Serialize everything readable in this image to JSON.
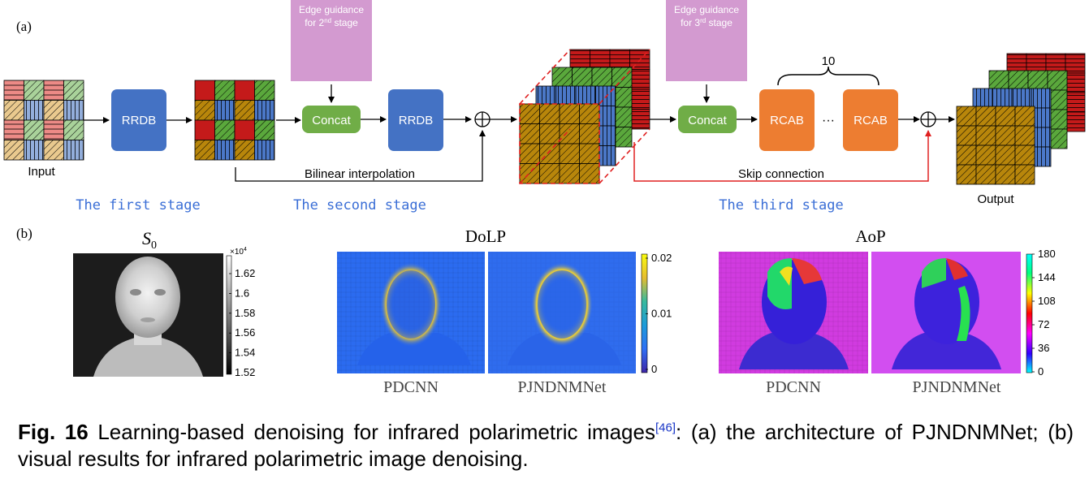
{
  "panel_a": {
    "label": "(a)",
    "input_label": "Input",
    "output_label": "Output",
    "rrdb_label": "RRDB",
    "concat_label": "Concat",
    "rcab_label": "RCAB",
    "ellipsis": "···",
    "rcab_count": "10",
    "edge_guidance_2_line1": "Edge guidance",
    "edge_guidance_2_line2": "for 2",
    "edge_guidance_2_sup": "nd",
    "edge_guidance_2_line2_end": " stage",
    "edge_guidance_3_line1": "Edge guidance",
    "edge_guidance_3_line2": "for 3",
    "edge_guidance_3_sup": "rd",
    "edge_guidance_3_line2_end": " stage",
    "bilinear_label": "Bilinear interpolation",
    "skip_label": "Skip connection",
    "stage1": "The first stage",
    "stage2": "The second stage",
    "stage3": "The third stage",
    "sum_symbol": "⊕"
  },
  "panel_b": {
    "label": "(b)",
    "s0_title_main": "S",
    "s0_title_sub": "0",
    "s0_colorbar_exponent_base": "×10",
    "s0_colorbar_exponent_power": "4",
    "s0_ticks": [
      "1.62",
      "1.6",
      "1.58",
      "1.56",
      "1.54",
      "1.52"
    ],
    "dolp_title": "DoLP",
    "dolp_ticks": [
      "0.02",
      "0.01",
      "0"
    ],
    "aop_title": "AoP",
    "aop_ticks": [
      "180",
      "144",
      "108",
      "72",
      "36",
      "0"
    ],
    "method_pdcnn": "PDCNN",
    "method_ours": "PJNDNMNet"
  },
  "caption": {
    "fig_label": "Fig. 16",
    "text_before_ref": " Learning-based denoising for infrared polarimetric images",
    "ref": "[46]",
    "text_after_ref": ": (a) the architecture of PJNDNMNet; (b) visual results for infrared polarimetric image denoising."
  },
  "colors": {
    "rrdb_blue": "#4472c4",
    "concat_green": "#70ad47",
    "rcab_orange": "#ed7d31",
    "edge_pink": "#d39ad0",
    "stage_text_blue": "#3a6ed6",
    "skip_red": "#e02020",
    "mosaic_red": "#c41a1a",
    "mosaic_green": "#5aa83c",
    "mosaic_blue": "#4b78c8",
    "mosaic_gold": "#b8860b"
  }
}
